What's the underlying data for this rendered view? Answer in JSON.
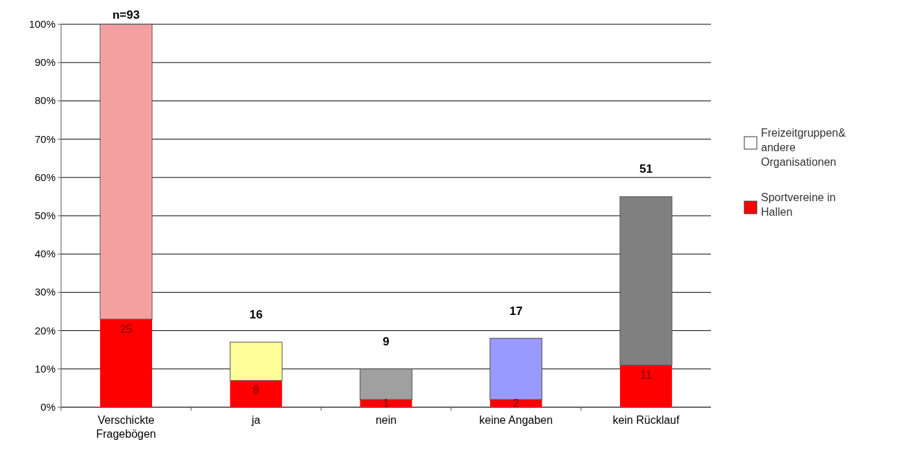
{
  "chart_data": {
    "type": "bar",
    "stacked": true,
    "categories": [
      "Verschickte Fragebögen",
      "ja",
      "nein",
      "keine Angaben",
      "kein Rücklauf"
    ],
    "series": [
      {
        "name": "Sportvereine in Hallen",
        "color": "#ff0000",
        "values": [
          23,
          7,
          2,
          2,
          11
        ]
      },
      {
        "name": "Freizeitgruppen& andere Organisationen",
        "color": "#ffffff",
        "colors": [
          "#f4a0a0",
          "#ffff99",
          "#a0a0a0",
          "#9999ff",
          "#808080"
        ],
        "values": [
          77,
          10,
          8,
          16,
          44
        ]
      }
    ],
    "annotations": [
      {
        "text": "25",
        "x": "Verschickte Fragebögen",
        "y": 23
      },
      {
        "text": "8",
        "x": "ja",
        "y": 7
      },
      {
        "text": "1",
        "x": "nein",
        "y": 2
      },
      {
        "text": "2",
        "x": "keine Angaben",
        "y": 2
      },
      {
        "text": "11",
        "x": "kein Rücklauf",
        "y": 11
      },
      {
        "text": "n=93",
        "x": "Verschickte Fragebögen",
        "y": 100
      },
      {
        "text": "16",
        "x": "ja",
        "y": 17
      },
      {
        "text": "9",
        "x": "nein",
        "y": 10
      },
      {
        "text": "17",
        "x": "keine Angaben",
        "y": 18
      },
      {
        "text": "51",
        "x": "kein Rücklauf",
        "y": 55
      }
    ],
    "ylim": [
      0,
      100
    ],
    "yticks": [
      {
        "value": 0,
        "label": "0%"
      },
      {
        "value": 10,
        "label": "10%"
      },
      {
        "value": 20,
        "label": "20%"
      },
      {
        "value": 30,
        "label": "30%"
      },
      {
        "value": 40,
        "label": "40%"
      },
      {
        "value": 50,
        "label": "50%"
      },
      {
        "value": 60,
        "label": "60%"
      },
      {
        "value": 70,
        "label": "70%"
      },
      {
        "value": 80,
        "label": "80%"
      },
      {
        "value": 90,
        "label": "90%"
      },
      {
        "value": 100,
        "label": "100%"
      }
    ],
    "grid": "y",
    "legend": "right"
  }
}
